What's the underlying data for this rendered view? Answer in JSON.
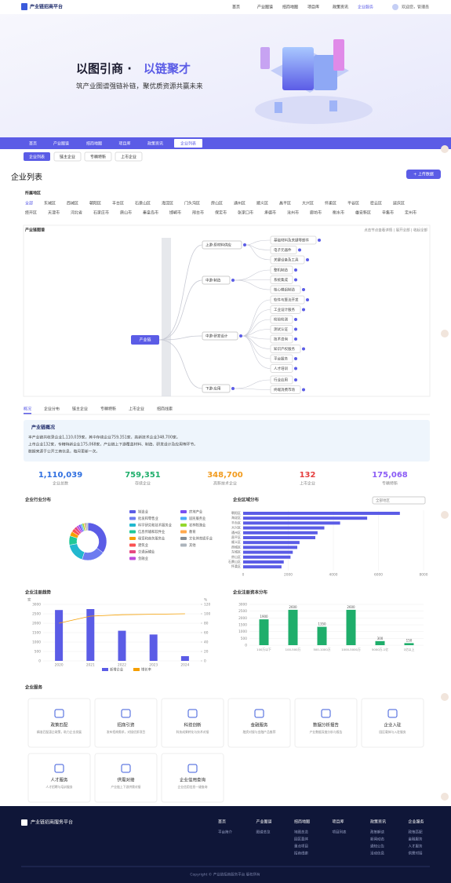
{
  "header": {
    "logo": "产业链招商平台",
    "nav": [
      "首页",
      "产业图谱",
      "招商地图",
      "项目库",
      "政策资讯",
      "企业服务"
    ],
    "user": "欢迎您，管理员"
  },
  "banner": {
    "title_a": "以图引商 · ",
    "title_b": "以链聚才",
    "subtitle": "筑产业图谱强链补链，聚优质资源共赢未来"
  },
  "tabs": {
    "items": [
      "首页",
      "产业图谱",
      "招商地图",
      "项目库",
      "政策资讯",
      "企业列表"
    ],
    "active": 5
  },
  "subtabs": {
    "items": [
      "企业列表",
      "链主企业",
      "专精特新",
      "上市企业"
    ],
    "active": 0
  },
  "section": {
    "title": "企业列表",
    "button": "+ 上传数据"
  },
  "filter": {
    "label": "所属地区",
    "chips": [
      "全部",
      "东城区",
      "西城区",
      "朝阳区",
      "丰台区",
      "石景山区",
      "海淀区",
      "门头沟区",
      "房山区",
      "通州区",
      "顺义区",
      "昌平区",
      "大兴区",
      "怀柔区",
      "平谷区",
      "密云区",
      "延庆区",
      "经开区",
      "天津市",
      "河北省",
      "石家庄市",
      "唐山市",
      "秦皇岛市",
      "邯郸市",
      "邢台市",
      "保定市",
      "张家口市",
      "承德市",
      "沧州市",
      "廊坊市",
      "衡水市",
      "雄安新区",
      "辛集市",
      "定州市"
    ]
  },
  "tree": {
    "title": "产业链图谱",
    "hint": "点击节点查看详情 | 展开全部 | 收起全部",
    "root": "产业链",
    "branches": [
      {
        "label": "上游·原材料供应",
        "leaves": [
          "基础材料及关键零部件",
          "电子元器件",
          "关键设备及工具"
        ]
      },
      {
        "label": "中游·制造",
        "leaves": [
          "整机制造",
          "系统集成",
          "核心模组制造"
        ]
      },
      {
        "label": "中游·研发设计",
        "leaves": [
          "软件与算法开发",
          "工业设计服务",
          "检验检测",
          "测试认证",
          "技术咨询",
          "知识产权服务",
          "平台服务",
          "人才培训"
        ]
      },
      {
        "label": "下游·应用",
        "leaves": [
          "行业应用",
          "终端消费市场"
        ]
      }
    ]
  },
  "detail_tabs": {
    "items": [
      "概况",
      "企业分布",
      "链主企业",
      "专精特新",
      "上市企业",
      "招商线索"
    ],
    "active": 0
  },
  "info": {
    "title": "产业链概况",
    "lines": [
      "本产业链共收录企业1,110,039家，其中存续企业759,351家，高新技术企业348,700家。",
      "上市企业132家，专精特新企业175,068家，产业链上下游覆盖材料、制造、研发设计及应用等环节。",
      "数据来源于公开工商信息，每月更新一次。"
    ]
  },
  "stats": [
    {
      "value": "1,110,039",
      "label": "企业总数",
      "color": "#2f6fe0"
    },
    {
      "value": "759,351",
      "label": "存续企业",
      "color": "#1fae6b"
    },
    {
      "value": "348,700",
      "label": "高新技术企业",
      "color": "#f29b1d"
    },
    {
      "value": "132",
      "label": "上市企业",
      "color": "#e53e3e"
    },
    {
      "value": "175,068",
      "label": "专精特新",
      "color": "#8b5cf6"
    }
  ],
  "donut": {
    "title": "企业行业分布",
    "categories": [
      "制造业",
      "批发和零售业",
      "科学研究和技术服务业",
      "信息传输和软件业",
      "租赁和商务服务业",
      "建筑业",
      "交通运输业",
      "金融业",
      "房地产业",
      "居民服务业",
      "农林牧渔业",
      "教育",
      "文化体育娱乐业",
      "其他"
    ],
    "values": [
      35,
      20,
      17,
      8,
      4,
      3,
      2.5,
      2,
      2,
      1.5,
      1.5,
      1.2,
      1.2,
      1.1
    ],
    "colors": [
      "#5b5ce6",
      "#6d7cf0",
      "#22b8cf",
      "#20c997",
      "#f59f00",
      "#fa5252",
      "#e64980",
      "#be4bdb",
      "#7950f2",
      "#4dabf7",
      "#94d82d",
      "#ffa94d",
      "#868e96",
      "#adb5bd"
    ]
  },
  "ind_bar": {
    "title": "企业区域分布",
    "select": "全部地区",
    "categories": [
      "朝阳区",
      "海淀区",
      "丰台区",
      "大兴区",
      "通州区",
      "昌平区",
      "顺义区",
      "西城区",
      "东城区",
      "房山区",
      "石景山区",
      "怀柔区"
    ],
    "values": [
      6950,
      5500,
      4300,
      3600,
      3300,
      3200,
      2500,
      2400,
      2200,
      2100,
      1800,
      1700
    ],
    "color": "#5b5ce6",
    "xlim": [
      0,
      8000
    ],
    "xticks": [
      0,
      2000,
      4000,
      6000,
      8000
    ]
  },
  "trend": {
    "title": "企业注册趋势",
    "categories": [
      "2020",
      "2021",
      "2022",
      "2023",
      "2024"
    ],
    "y_unit": "家",
    "y2_unit": "%",
    "series": [
      {
        "name": "新增企业",
        "color": "#5b5ce6",
        "values": [
          2700,
          2750,
          1600,
          1400,
          250
        ]
      },
      {
        "name": "增长率",
        "color": "#f59f00",
        "axis": "y2",
        "values": [
          80,
          95,
          98,
          99,
          100
        ]
      }
    ],
    "ylim": [
      0,
      3000
    ],
    "yticks": [
      0,
      500,
      1000,
      1500,
      2000,
      2500,
      3000
    ],
    "y2lim": [
      0,
      120
    ],
    "y2ticks": [
      0,
      20,
      40,
      60,
      80,
      100,
      120
    ]
  },
  "green": {
    "title": "企业注册资本分布",
    "categories": [
      "100万以下",
      "100-500万",
      "500-1000万",
      "1000-5000万",
      "5000万-1亿",
      "1亿以上"
    ],
    "values": [
      1900,
      2600,
      1350,
      2600,
      300,
      150
    ],
    "color": "#1fae6b",
    "ylim": [
      0,
      3000
    ],
    "yticks": [
      0,
      500,
      1000,
      1500,
      2000,
      2500,
      3000
    ]
  },
  "services": {
    "title": "企业服务",
    "cards": [
      {
        "name": "政策匹配",
        "desc": "精准匹配惠企政策，助力企业发展"
      },
      {
        "name": "招商引资",
        "desc": "发布招商需求，对接优质项目"
      },
      {
        "name": "科技创新",
        "desc": "科技成果转化与技术对接"
      },
      {
        "name": "金融服务",
        "desc": "融资对接与金融产品推荐"
      },
      {
        "name": "数据分析报告",
        "desc": "产业数据深度分析与报告"
      },
      {
        "name": "企业入驻",
        "desc": "园区载体与入驻服务"
      },
      {
        "name": "人才服务",
        "desc": "人才招聘与培训服务"
      },
      {
        "name": "供需对接",
        "desc": "产业链上下游供需对接"
      },
      {
        "name": "企业信用查询",
        "desc": "企业信用信息一键查询"
      }
    ]
  },
  "footer": {
    "brand": "产业链招商服务平台",
    "columns": [
      {
        "title": "首页",
        "links": [
          "平台简介"
        ]
      },
      {
        "title": "产业图谱",
        "links": [
          "图谱总览"
        ]
      },
      {
        "title": "招商地图",
        "links": [
          "地图总览",
          "园区载体",
          "重点项目",
          "招商线索"
        ]
      },
      {
        "title": "项目库",
        "links": [
          "项目列表"
        ]
      },
      {
        "title": "政策资讯",
        "links": [
          "政策解读",
          "新闻动态",
          "通知公告",
          "活动信息"
        ]
      },
      {
        "title": "企业服务",
        "links": [
          "政策匹配",
          "金融服务",
          "人才服务",
          "供需对接"
        ]
      }
    ],
    "copyright": "Copyright © 产业链招商服务平台 版权所有"
  }
}
